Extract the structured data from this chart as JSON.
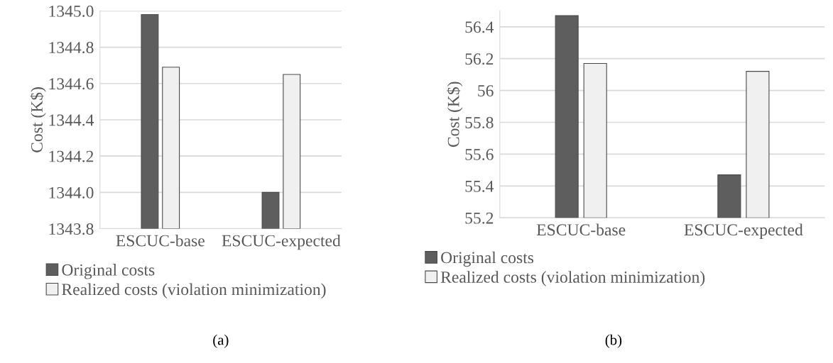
{
  "chart_data": [
    {
      "type": "bar",
      "ylabel": "Cost (K$)",
      "categories": [
        "ESCUC-base",
        "ESCUC-expected"
      ],
      "series": [
        {
          "name": "Original costs",
          "color": "#5e5e5e",
          "values": [
            1344.98,
            1344.0
          ]
        },
        {
          "name": "Realized costs (violation minimization)",
          "color": "#f0f0f0",
          "values": [
            1344.69,
            1344.65
          ]
        }
      ],
      "ylim": [
        1343.8,
        1345.0
      ],
      "yticks": [
        {
          "value": 1343.8,
          "label": "1343.8"
        },
        {
          "value": 1344.0,
          "label": "1344.0"
        },
        1344.2,
        1344.4,
        1344.6,
        1344.8,
        {
          "value": 1345.0,
          "label": "1345.0"
        }
      ],
      "grid": "y",
      "legend": "bottom",
      "annotations": [
        "(a)"
      ]
    },
    {
      "type": "bar",
      "ylabel": "Cost (K$)",
      "categories": [
        "ESCUC-base",
        "ESCUC-expected"
      ],
      "series": [
        {
          "name": "Original costs",
          "color": "#5e5e5e",
          "values": [
            56.47,
            55.47
          ]
        },
        {
          "name": "Realized costs (violation minimization)",
          "color": "#f0f0f0",
          "values": [
            56.17,
            56.12
          ]
        }
      ],
      "ylim": [
        55.2,
        56.5
      ],
      "yticks": [
        55.2,
        55.4,
        55.6,
        55.8,
        56,
        56.2,
        56.4
      ],
      "grid": "y",
      "legend": "bottom",
      "annotations": [
        "(b)"
      ]
    }
  ]
}
